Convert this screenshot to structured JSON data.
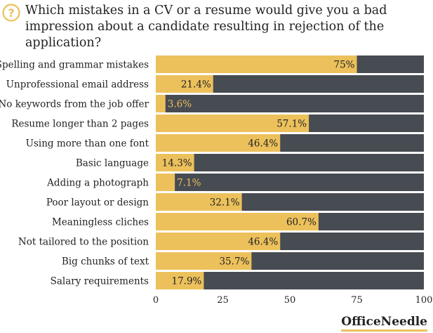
{
  "title": "Which mistakes in a CV or a resume would give you a bad impression about a candidate resulting in rejection of the application?",
  "icon": "question-circle-icon",
  "brand": "OfficeNeedle",
  "colors": {
    "bar_fill": "#ecc15c",
    "bar_track": "#474b52",
    "icon": "#ecc15c",
    "text": "#222222",
    "label_on_track": "#ecc15c"
  },
  "chart_data": {
    "type": "bar",
    "orientation": "horizontal",
    "categories": [
      "Spelling and grammar mistakes",
      "Unprofessional email address",
      "No keywords from the job offer",
      "Resume longer than 2 pages",
      "Using more than one font",
      "Basic language",
      "Adding a photograph",
      "Poor layout or design",
      "Meaningless cliches",
      "Not tailored to the position",
      "Big chunks of text",
      "Salary requirements"
    ],
    "values": [
      75,
      21.4,
      3.6,
      57.1,
      46.4,
      14.3,
      7.1,
      32.1,
      60.7,
      46.4,
      35.7,
      17.9
    ],
    "value_labels": [
      "75%",
      "21.4%",
      "3.6%",
      "57.1%",
      "46.4%",
      "14.3%",
      "7.1%",
      "32.1%",
      "60.7%",
      "46.4%",
      "35.7%",
      "17.9%"
    ],
    "xlim": [
      0,
      100
    ],
    "xticks": [
      0,
      25,
      50,
      75,
      100
    ],
    "xlabel": "",
    "ylabel": "",
    "grid": false,
    "legend": "none"
  }
}
